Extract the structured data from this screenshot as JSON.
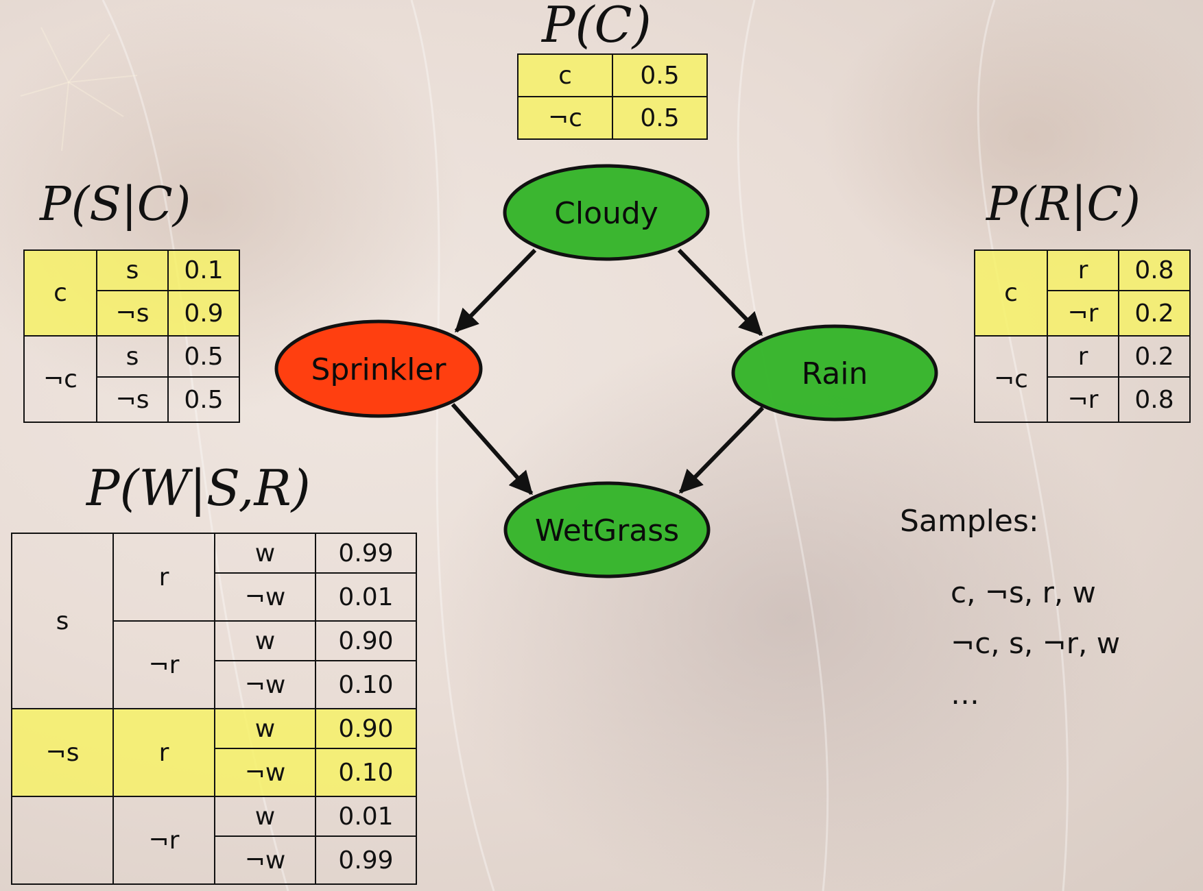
{
  "titles": {
    "pc": "P(C)",
    "psc": "P(S|C)",
    "prc": "P(R|C)",
    "pwsr": "P(W|S,R)"
  },
  "pc_table": {
    "rows": [
      {
        "var": "c",
        "p": "0.5"
      },
      {
        "var": "¬c",
        "p": "0.5"
      }
    ]
  },
  "psc_table": {
    "c": "c",
    "notc": "¬c",
    "rows": [
      {
        "val": "s",
        "p": "0.1"
      },
      {
        "val": "¬s",
        "p": "0.9"
      },
      {
        "val": "s",
        "p": "0.5"
      },
      {
        "val": "¬s",
        "p": "0.5"
      }
    ]
  },
  "prc_table": {
    "c": "c",
    "notc": "¬c",
    "rows": [
      {
        "val": "r",
        "p": "0.8"
      },
      {
        "val": "¬r",
        "p": "0.2"
      },
      {
        "val": "r",
        "p": "0.2"
      },
      {
        "val": "¬r",
        "p": "0.8"
      }
    ]
  },
  "pwsr_table": {
    "s": "s",
    "nots": "¬s",
    "r": "r",
    "notr": "¬r",
    "rows": [
      {
        "val": "w",
        "p": "0.99"
      },
      {
        "val": "¬w",
        "p": "0.01"
      },
      {
        "val": "w",
        "p": "0.90"
      },
      {
        "val": "¬w",
        "p": "0.10"
      },
      {
        "val": "w",
        "p": "0.90"
      },
      {
        "val": "¬w",
        "p": "0.10"
      },
      {
        "val": "w",
        "p": "0.01"
      },
      {
        "val": "¬w",
        "p": "0.99"
      }
    ]
  },
  "nodes": {
    "cloudy": "Cloudy",
    "sprinkler": "Sprinkler",
    "rain": "Rain",
    "wetgrass": "WetGrass"
  },
  "colors": {
    "node_green": "#35b52a",
    "node_red": "#ff3f10",
    "highlight": "#f6f264"
  },
  "samples": {
    "header": "Samples:",
    "items": [
      "c, ¬s, r, w",
      "¬c, s, ¬r, w",
      "…"
    ]
  }
}
